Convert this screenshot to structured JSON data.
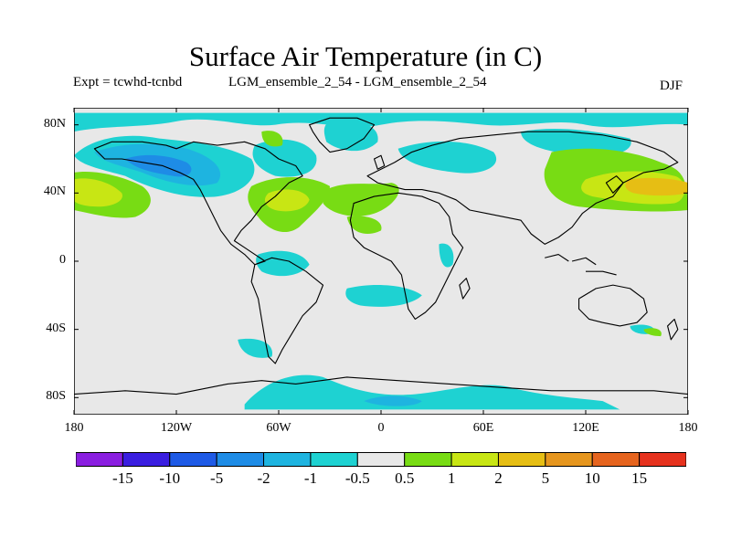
{
  "title": "Surface Air Temperature (in C)",
  "experiment": "Expt = tcwhd-tcnbd",
  "runs": "LGM_ensemble_2_54 - LGM_ensemble_2_54",
  "season": "DJF",
  "map": {
    "projection": "cylindrical equidistant",
    "lon_range": [
      -180,
      180
    ],
    "lat_range": [
      -90,
      90
    ],
    "background_color": "#e8e8e8",
    "coastline_color": "#000000",
    "y_axis": {
      "labels": [
        "80N",
        "40N",
        "0",
        "40S",
        "80S"
      ],
      "values": [
        80,
        40,
        0,
        -40,
        -80
      ]
    },
    "x_axis": {
      "labels": [
        "180",
        "120W",
        "60W",
        "0",
        "60E",
        "120E",
        "180"
      ],
      "values": [
        -180,
        -120,
        -60,
        0,
        60,
        120,
        180
      ]
    }
  },
  "colorbar": {
    "labels": [
      "-15",
      "-10",
      "-5",
      "-2",
      "-1",
      "-0.5",
      "0.5",
      "1",
      "2",
      "5",
      "10",
      "15"
    ],
    "colors": [
      "#8a1ee0",
      "#3a1ee0",
      "#1e5ae6",
      "#1e8ce6",
      "#1eb4e0",
      "#1ed2d2",
      "#e8e8e8",
      "#78dc14",
      "#c8e614",
      "#e6be14",
      "#e6961e",
      "#e6641e",
      "#e6321e"
    ]
  }
}
